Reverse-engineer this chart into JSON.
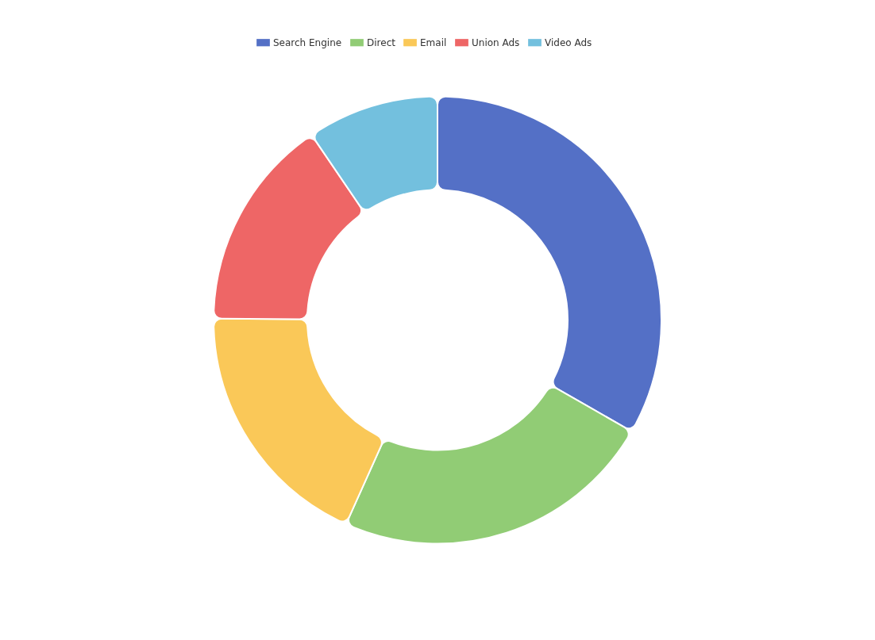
{
  "chart_data": {
    "type": "donut",
    "categories": [
      "Search Engine",
      "Direct",
      "Email",
      "Union Ads",
      "Video Ads"
    ],
    "values": [
      33.3,
      23.4,
      18.4,
      15.4,
      9.5
    ],
    "colors": [
      "#5470c6",
      "#91cc75",
      "#fac858",
      "#ee6666",
      "#73c0de"
    ],
    "legend": "top"
  }
}
